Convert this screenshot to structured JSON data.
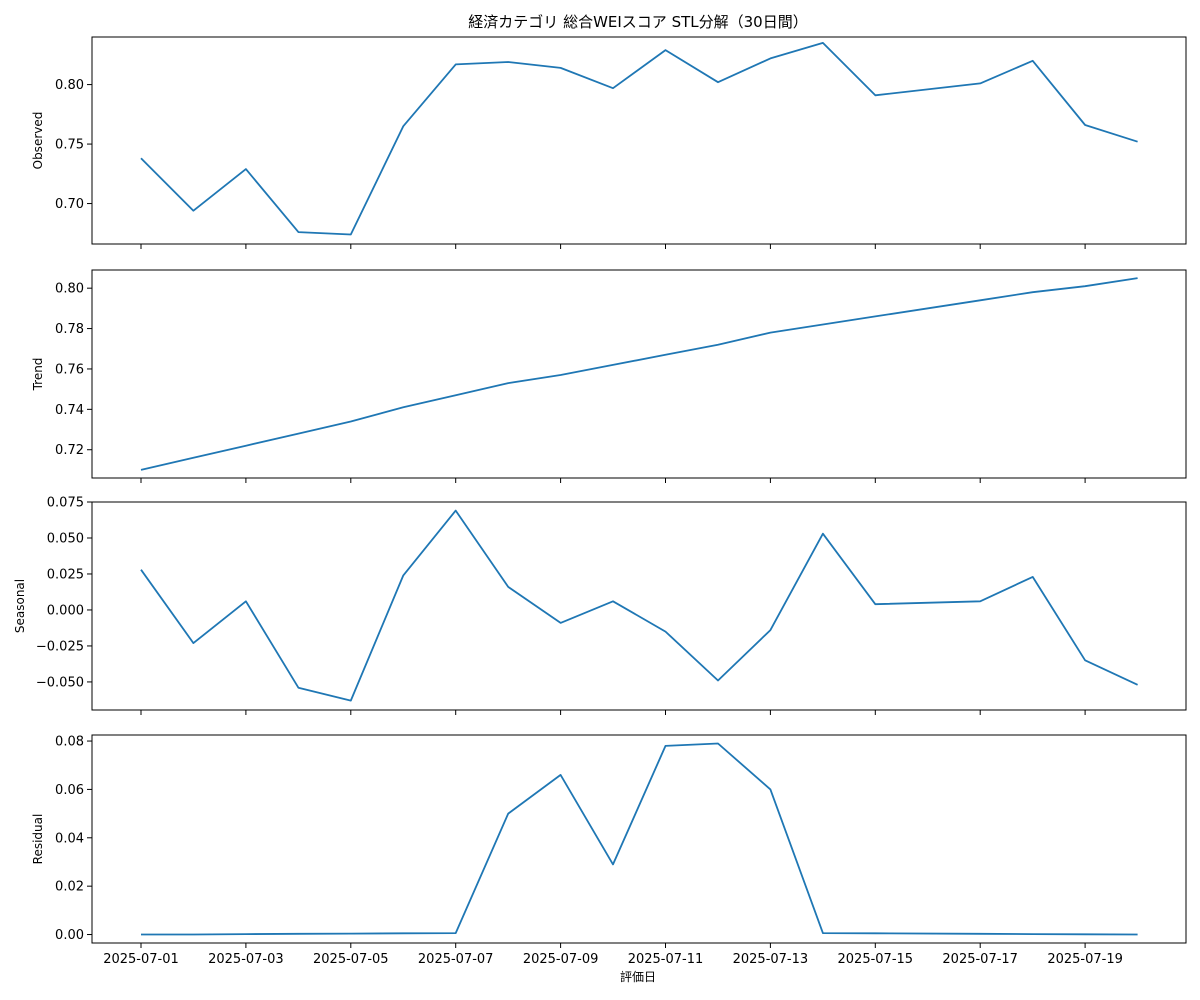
{
  "chart_data": {
    "type": "line",
    "title": "経済カテゴリ 総合WEIスコア STL分解（30日間）",
    "xlabel": "評価日",
    "x": [
      "2025-07-01",
      "2025-07-02",
      "2025-07-03",
      "2025-07-04",
      "2025-07-05",
      "2025-07-06",
      "2025-07-07",
      "2025-07-08",
      "2025-07-09",
      "2025-07-10",
      "2025-07-11",
      "2025-07-12",
      "2025-07-13",
      "2025-07-14",
      "2025-07-15",
      "2025-07-17",
      "2025-07-18",
      "2025-07-19",
      "2025-07-20"
    ],
    "x_tick_labels": [
      "2025-07-01",
      "2025-07-03",
      "2025-07-05",
      "2025-07-07",
      "2025-07-09",
      "2025-07-11",
      "2025-07-13",
      "2025-07-15",
      "2025-07-17",
      "2025-07-19"
    ],
    "line_color": "#1f77b4",
    "panels": [
      {
        "ylabel": "Observed",
        "ylim": [
          0.666,
          0.84
        ],
        "yticks": [
          0.7,
          0.75,
          0.8
        ],
        "ytick_labels": [
          "0.70",
          "0.75",
          "0.80"
        ],
        "values": [
          0.738,
          0.694,
          0.729,
          0.676,
          0.674,
          0.765,
          0.817,
          0.819,
          0.814,
          0.797,
          0.829,
          0.802,
          0.822,
          0.835,
          0.791,
          0.801,
          0.82,
          0.766,
          0.752
        ]
      },
      {
        "ylabel": "Trend",
        "ylim": [
          0.706,
          0.809
        ],
        "yticks": [
          0.72,
          0.74,
          0.76,
          0.78,
          0.8
        ],
        "ytick_labels": [
          "0.72",
          "0.74",
          "0.76",
          "0.78",
          "0.80"
        ],
        "values": [
          0.71,
          0.716,
          0.722,
          0.728,
          0.734,
          0.741,
          0.747,
          0.753,
          0.757,
          0.762,
          0.767,
          0.772,
          0.778,
          0.782,
          0.786,
          0.794,
          0.798,
          0.801,
          0.805
        ]
      },
      {
        "ylabel": "Seasonal",
        "ylim": [
          -0.0695,
          0.075
        ],
        "yticks": [
          -0.05,
          -0.025,
          0.0,
          0.025,
          0.05,
          0.075
        ],
        "ytick_labels": [
          "−0.050",
          "−0.025",
          "0.000",
          "0.025",
          "0.050",
          "0.075"
        ],
        "values": [
          0.028,
          -0.023,
          0.006,
          -0.054,
          -0.063,
          0.024,
          0.069,
          0.016,
          -0.009,
          0.006,
          -0.015,
          -0.049,
          -0.014,
          0.053,
          0.004,
          0.006,
          0.023,
          -0.035,
          -0.052
        ]
      },
      {
        "ylabel": "Residual",
        "ylim": [
          -0.0035,
          0.0825
        ],
        "yticks": [
          0.0,
          0.02,
          0.04,
          0.06,
          0.08
        ],
        "ytick_labels": [
          "0.00",
          "0.02",
          "0.04",
          "0.06",
          "0.08"
        ],
        "values": [
          0.0,
          0.0,
          0.0002,
          0.0003,
          0.0004,
          0.0005,
          0.0006,
          0.05,
          0.066,
          0.029,
          0.078,
          0.079,
          0.06,
          0.0006,
          0.0005,
          0.0003,
          0.0002,
          0.0001,
          0.0
        ]
      }
    ]
  }
}
